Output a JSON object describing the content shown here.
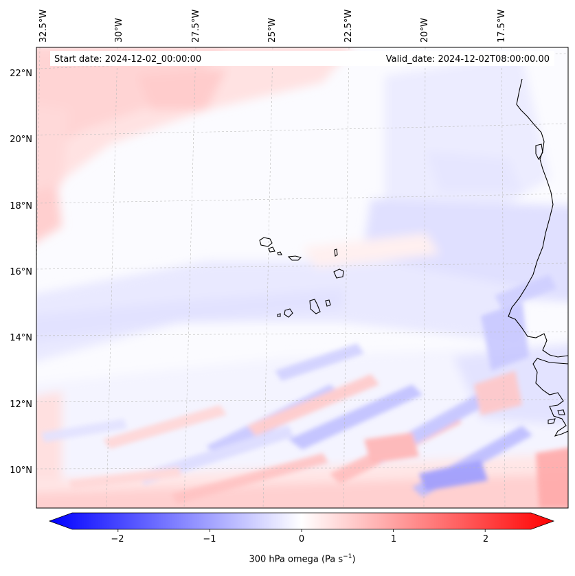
{
  "map": {
    "start_date_text": "Start date: 2024-12-02_00:00:00",
    "valid_date_text": "Valid_date: 2024-12-02T08:00:00.00",
    "lon_labels": [
      "32.5°W",
      "30°W",
      "27.5°W",
      "25°W",
      "22.5°W",
      "20°W",
      "17.5°W"
    ],
    "lat_labels": [
      "22°N",
      "20°N",
      "18°N",
      "16°N",
      "14°N",
      "12°N",
      "10°N"
    ],
    "extent": {
      "lon_min": -33.0,
      "lon_max": -15.8,
      "lat_min": 8.9,
      "lat_max": 22.8
    }
  },
  "colorbar": {
    "ticks": [
      "−2",
      "−1",
      "0",
      "1",
      "2"
    ],
    "tick_values": [
      -2,
      -1,
      0,
      1,
      2
    ],
    "range": [
      -2.5,
      2.5
    ],
    "label_main": "300 hPa omega (Pa s",
    "label_sup": "−1",
    "label_end": ")",
    "colors": {
      "negative": "#0000ff",
      "zero": "#ffffff",
      "positive": "#ff0000"
    }
  },
  "colors": {
    "coastline": "#000000",
    "gridline": "#bbbbbb",
    "frame": "#000000"
  }
}
